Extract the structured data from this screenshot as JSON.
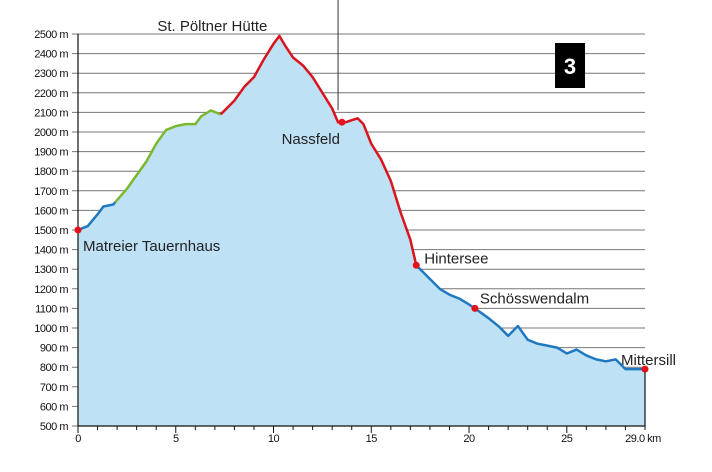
{
  "chart_data": {
    "type": "area",
    "title": "",
    "xlabel": "",
    "ylabel": "",
    "xlim": [
      0,
      29
    ],
    "ylim": [
      500,
      2500
    ],
    "grid": true,
    "badge": "3",
    "yticks": [
      500,
      600,
      700,
      800,
      900,
      1000,
      1100,
      1200,
      1300,
      1400,
      1500,
      1600,
      1700,
      1800,
      1900,
      2000,
      2100,
      2200,
      2300,
      2400,
      2500
    ],
    "ytick_suffix": " m",
    "xticks": [
      0,
      5,
      10,
      15,
      20,
      25
    ],
    "xtick_labels": [
      "0",
      "5",
      "10",
      "15",
      "20",
      "25"
    ],
    "x_end_label": "29.0 km",
    "colors": {
      "fill": "#bfe1f5",
      "blue": "#1f78c1",
      "green": "#7cb82f",
      "red": "#d9141c",
      "marker": "#e3131b"
    },
    "profile": [
      [
        0,
        1500
      ],
      [
        0.5,
        1520
      ],
      [
        1,
        1580
      ],
      [
        1.3,
        1620
      ],
      [
        1.8,
        1630
      ],
      [
        2.5,
        1710
      ],
      [
        3,
        1780
      ],
      [
        3.5,
        1850
      ],
      [
        4,
        1940
      ],
      [
        4.5,
        2010
      ],
      [
        5,
        2030
      ],
      [
        5.5,
        2040
      ],
      [
        6,
        2040
      ],
      [
        6.3,
        2080
      ],
      [
        6.8,
        2110
      ],
      [
        7.3,
        2090
      ],
      [
        8,
        2160
      ],
      [
        8.5,
        2230
      ],
      [
        9,
        2280
      ],
      [
        9.5,
        2370
      ],
      [
        10,
        2450
      ],
      [
        10.3,
        2490
      ],
      [
        10.6,
        2440
      ],
      [
        11,
        2380
      ],
      [
        11.5,
        2340
      ],
      [
        12,
        2280
      ],
      [
        12.5,
        2200
      ],
      [
        13,
        2120
      ],
      [
        13.3,
        2050
      ],
      [
        13.7,
        2050
      ],
      [
        14,
        2060
      ],
      [
        14.3,
        2070
      ],
      [
        14.6,
        2040
      ],
      [
        15,
        1940
      ],
      [
        15.5,
        1860
      ],
      [
        16,
        1750
      ],
      [
        16.5,
        1590
      ],
      [
        17,
        1450
      ],
      [
        17.3,
        1320
      ],
      [
        18,
        1250
      ],
      [
        18.5,
        1200
      ],
      [
        19,
        1170
      ],
      [
        19.5,
        1150
      ],
      [
        20,
        1120
      ],
      [
        20.3,
        1100
      ],
      [
        21,
        1050
      ],
      [
        21.5,
        1010
      ],
      [
        22,
        960
      ],
      [
        22.5,
        1010
      ],
      [
        23,
        940
      ],
      [
        23.5,
        920
      ],
      [
        24,
        910
      ],
      [
        24.5,
        900
      ],
      [
        25,
        870
      ],
      [
        25.5,
        890
      ],
      [
        26,
        860
      ],
      [
        26.5,
        840
      ],
      [
        27,
        830
      ],
      [
        27.5,
        840
      ],
      [
        28,
        790
      ],
      [
        29,
        790
      ]
    ],
    "segments": [
      {
        "from": 0,
        "to": 1.9,
        "color": "blue"
      },
      {
        "from": 1.9,
        "to": 7.3,
        "color": "green"
      },
      {
        "from": 7.3,
        "to": 17.3,
        "color": "red"
      },
      {
        "from": 17.3,
        "to": 29,
        "color": "blue"
      }
    ],
    "waypoints": [
      {
        "name": "Matreier Tauernhaus",
        "km": 0,
        "ele": 1500,
        "marker": true
      },
      {
        "name": "St. Pöltner Hütte",
        "km": 10.3,
        "ele": 2490,
        "marker": false
      },
      {
        "name": "Nassfeld",
        "km": 13.5,
        "ele": 2050,
        "marker": true
      },
      {
        "name": "Hintersee",
        "km": 17.3,
        "ele": 1320,
        "marker": true
      },
      {
        "name": "Schösswendalm",
        "km": 20.3,
        "ele": 1100,
        "marker": true
      },
      {
        "name": "Mittersill",
        "km": 29,
        "ele": 790,
        "marker": true
      }
    ]
  }
}
